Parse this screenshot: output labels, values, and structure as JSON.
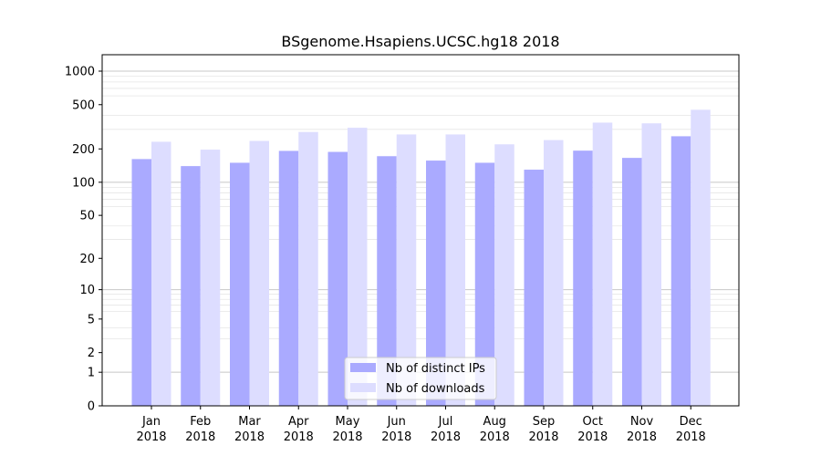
{
  "chart_data": {
    "type": "bar",
    "title": "BSgenome.Hsapiens.UCSC.hg18 2018",
    "xlabel": "",
    "ylabel": "",
    "yscale": "log1p",
    "ylim": [
      0,
      1300
    ],
    "yticks": [
      0,
      1,
      2,
      5,
      10,
      20,
      50,
      100,
      200,
      500,
      1000
    ],
    "yticklabels": [
      "0",
      "1",
      "2",
      "5",
      "10",
      "20",
      "50",
      "100",
      "200",
      "500",
      "1000"
    ],
    "categories": [
      {
        "month": "Jan",
        "year": "2018"
      },
      {
        "month": "Feb",
        "year": "2018"
      },
      {
        "month": "Mar",
        "year": "2018"
      },
      {
        "month": "Apr",
        "year": "2018"
      },
      {
        "month": "May",
        "year": "2018"
      },
      {
        "month": "Jun",
        "year": "2018"
      },
      {
        "month": "Jul",
        "year": "2018"
      },
      {
        "month": "Aug",
        "year": "2018"
      },
      {
        "month": "Sep",
        "year": "2018"
      },
      {
        "month": "Oct",
        "year": "2018"
      },
      {
        "month": "Nov",
        "year": "2018"
      },
      {
        "month": "Dec",
        "year": "2018"
      }
    ],
    "series": [
      {
        "name": "Nb of distinct IPs",
        "color": "#aaaaff",
        "values": [
          162,
          140,
          150,
          192,
          188,
          172,
          157,
          150,
          130,
          193,
          166,
          260
        ]
      },
      {
        "name": "Nb of downloads",
        "color": "#ddddff",
        "values": [
          232,
          197,
          236,
          284,
          310,
          270,
          270,
          220,
          240,
          345,
          340,
          450
        ]
      }
    ],
    "grid": true,
    "legend_position": "bottom-center"
  }
}
